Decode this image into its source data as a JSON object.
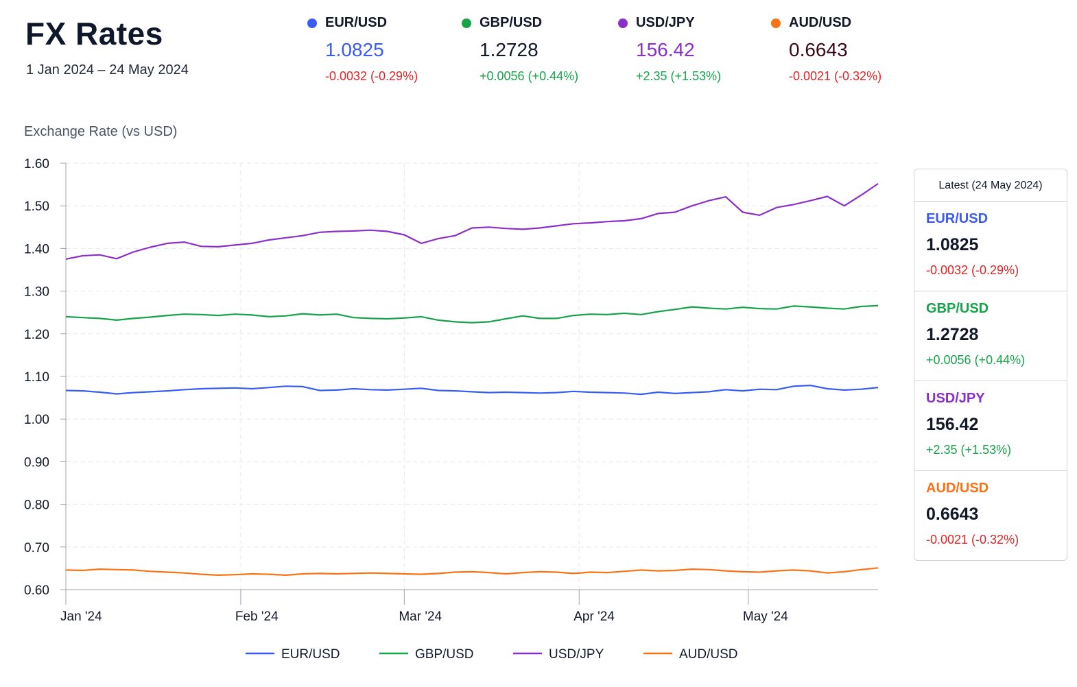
{
  "header": {
    "title": "FX Rates",
    "subtitle": "1 Jan 2024 – 24 May 2024"
  },
  "tiles": [
    {
      "pair": "EUR/USD",
      "rate": "1.0825",
      "change": "-0.0032 (-0.29%)",
      "color": "#3b5bf5",
      "rate_color": "#3b5bf5",
      "direction": "neg"
    },
    {
      "pair": "GBP/USD",
      "rate": "1.2728",
      "change": "+0.0056 (+0.44%)",
      "color": "#16a34a",
      "rate_color": "#111827",
      "direction": "pos"
    },
    {
      "pair": "USD/JPY",
      "rate": "156.42",
      "change": "+2.35 (+1.53%)",
      "color": "#8b2fc9",
      "rate_color": "#8b2fc9",
      "direction": "pos"
    },
    {
      "pair": "AUD/USD",
      "rate": "0.6643",
      "change": "-0.0021 (-0.32%)",
      "color": "#f97316",
      "rate_color": "#3b0a18",
      "direction": "neg"
    }
  ],
  "panel": {
    "heading": "Latest (24 May 2024)",
    "items": [
      {
        "pair": "EUR/USD",
        "rate": "1.0825",
        "change": "-0.0032 (-0.29%)",
        "color": "#3b5bf5",
        "direction": "neg"
      },
      {
        "pair": "GBP/USD",
        "rate": "1.2728",
        "change": "+0.0056 (+0.44%)",
        "color": "#16a34a",
        "direction": "pos"
      },
      {
        "pair": "USD/JPY",
        "rate": "156.42",
        "change": "+2.35 (+1.53%)",
        "color": "#8b2fc9",
        "direction": "pos"
      },
      {
        "pair": "AUD/USD",
        "rate": "0.6643",
        "change": "-0.0021 (-0.32%)",
        "color": "#f97316",
        "direction": "neg"
      }
    ]
  },
  "chart_data": {
    "type": "line",
    "ylabel": "Exchange Rate (vs USD)",
    "ylim": [
      0.6,
      1.6
    ],
    "yticks": [
      "0.60",
      "0.70",
      "0.80",
      "0.90",
      "1.00",
      "1.10",
      "1.20",
      "1.30",
      "1.40",
      "1.50",
      "1.60"
    ],
    "xlim": [
      "2024-01-01",
      "2024-05-24"
    ],
    "xticks": [
      {
        "date": "2024-01-01",
        "label": "Jan '24"
      },
      {
        "date": "2024-02-01",
        "label": "Feb '24"
      },
      {
        "date": "2024-03-01",
        "label": "Mar '24"
      },
      {
        "date": "2024-04-01",
        "label": "Apr '24"
      },
      {
        "date": "2024-05-01",
        "label": "May '24"
      }
    ],
    "grid": true,
    "legend": "bottom",
    "series": [
      {
        "name": "EUR/USD",
        "color": "#3b5bf5",
        "points": [
          [
            "2024-01-01",
            1.067
          ],
          [
            "2024-01-04",
            1.066
          ],
          [
            "2024-01-07",
            1.063
          ],
          [
            "2024-01-10",
            1.059
          ],
          [
            "2024-01-13",
            1.062
          ],
          [
            "2024-01-16",
            1.064
          ],
          [
            "2024-01-19",
            1.066
          ],
          [
            "2024-01-22",
            1.069
          ],
          [
            "2024-01-25",
            1.071
          ],
          [
            "2024-01-28",
            1.072
          ],
          [
            "2024-01-31",
            1.073
          ],
          [
            "2024-02-03",
            1.071
          ],
          [
            "2024-02-06",
            1.074
          ],
          [
            "2024-02-09",
            1.077
          ],
          [
            "2024-02-12",
            1.076
          ],
          [
            "2024-02-15",
            1.067
          ],
          [
            "2024-02-18",
            1.068
          ],
          [
            "2024-02-21",
            1.071
          ],
          [
            "2024-02-24",
            1.069
          ],
          [
            "2024-02-27",
            1.068
          ],
          [
            "2024-03-01",
            1.07
          ],
          [
            "2024-03-04",
            1.072
          ],
          [
            "2024-03-07",
            1.067
          ],
          [
            "2024-03-10",
            1.066
          ],
          [
            "2024-03-13",
            1.064
          ],
          [
            "2024-03-16",
            1.062
          ],
          [
            "2024-03-19",
            1.063
          ],
          [
            "2024-03-22",
            1.062
          ],
          [
            "2024-03-25",
            1.061
          ],
          [
            "2024-03-28",
            1.062
          ],
          [
            "2024-03-31",
            1.065
          ],
          [
            "2024-04-03",
            1.063
          ],
          [
            "2024-04-06",
            1.062
          ],
          [
            "2024-04-09",
            1.061
          ],
          [
            "2024-04-12",
            1.058
          ],
          [
            "2024-04-15",
            1.063
          ],
          [
            "2024-04-18",
            1.06
          ],
          [
            "2024-04-21",
            1.062
          ],
          [
            "2024-04-24",
            1.064
          ],
          [
            "2024-04-27",
            1.069
          ],
          [
            "2024-04-30",
            1.066
          ],
          [
            "2024-05-03",
            1.07
          ],
          [
            "2024-05-06",
            1.069
          ],
          [
            "2024-05-09",
            1.077
          ],
          [
            "2024-05-12",
            1.079
          ],
          [
            "2024-05-15",
            1.071
          ],
          [
            "2024-05-18",
            1.068
          ],
          [
            "2024-05-21",
            1.07
          ],
          [
            "2024-05-24",
            1.074
          ]
        ]
      },
      {
        "name": "GBP/USD",
        "color": "#16a34a",
        "points": [
          [
            "2024-01-01",
            1.24
          ],
          [
            "2024-01-04",
            1.238
          ],
          [
            "2024-01-07",
            1.236
          ],
          [
            "2024-01-10",
            1.232
          ],
          [
            "2024-01-13",
            1.236
          ],
          [
            "2024-01-16",
            1.239
          ],
          [
            "2024-01-19",
            1.243
          ],
          [
            "2024-01-22",
            1.246
          ],
          [
            "2024-01-25",
            1.245
          ],
          [
            "2024-01-28",
            1.243
          ],
          [
            "2024-01-31",
            1.246
          ],
          [
            "2024-02-03",
            1.244
          ],
          [
            "2024-02-06",
            1.24
          ],
          [
            "2024-02-09",
            1.242
          ],
          [
            "2024-02-12",
            1.247
          ],
          [
            "2024-02-15",
            1.244
          ],
          [
            "2024-02-18",
            1.246
          ],
          [
            "2024-02-21",
            1.238
          ],
          [
            "2024-02-24",
            1.236
          ],
          [
            "2024-02-27",
            1.235
          ],
          [
            "2024-03-01",
            1.237
          ],
          [
            "2024-03-04",
            1.24
          ],
          [
            "2024-03-07",
            1.232
          ],
          [
            "2024-03-10",
            1.228
          ],
          [
            "2024-03-13",
            1.226
          ],
          [
            "2024-03-16",
            1.228
          ],
          [
            "2024-03-19",
            1.235
          ],
          [
            "2024-03-22",
            1.242
          ],
          [
            "2024-03-25",
            1.236
          ],
          [
            "2024-03-28",
            1.236
          ],
          [
            "2024-03-31",
            1.243
          ],
          [
            "2024-04-03",
            1.246
          ],
          [
            "2024-04-06",
            1.245
          ],
          [
            "2024-04-09",
            1.248
          ],
          [
            "2024-04-12",
            1.245
          ],
          [
            "2024-04-15",
            1.252
          ],
          [
            "2024-04-18",
            1.257
          ],
          [
            "2024-04-21",
            1.263
          ],
          [
            "2024-04-24",
            1.26
          ],
          [
            "2024-04-27",
            1.258
          ],
          [
            "2024-04-30",
            1.262
          ],
          [
            "2024-05-03",
            1.259
          ],
          [
            "2024-05-06",
            1.258
          ],
          [
            "2024-05-09",
            1.265
          ],
          [
            "2024-05-12",
            1.263
          ],
          [
            "2024-05-15",
            1.26
          ],
          [
            "2024-05-18",
            1.258
          ],
          [
            "2024-05-21",
            1.264
          ],
          [
            "2024-05-24",
            1.266
          ]
        ]
      },
      {
        "name": "USD/JPY",
        "color": "#8b2fc9",
        "points": [
          [
            "2024-01-01",
            1.375
          ],
          [
            "2024-01-04",
            1.383
          ],
          [
            "2024-01-07",
            1.385
          ],
          [
            "2024-01-10",
            1.376
          ],
          [
            "2024-01-13",
            1.392
          ],
          [
            "2024-01-16",
            1.403
          ],
          [
            "2024-01-19",
            1.412
          ],
          [
            "2024-01-22",
            1.415
          ],
          [
            "2024-01-25",
            1.405
          ],
          [
            "2024-01-28",
            1.404
          ],
          [
            "2024-01-31",
            1.408
          ],
          [
            "2024-02-03",
            1.412
          ],
          [
            "2024-02-06",
            1.42
          ],
          [
            "2024-02-09",
            1.425
          ],
          [
            "2024-02-12",
            1.43
          ],
          [
            "2024-02-15",
            1.438
          ],
          [
            "2024-02-18",
            1.44
          ],
          [
            "2024-02-21",
            1.441
          ],
          [
            "2024-02-24",
            1.443
          ],
          [
            "2024-02-27",
            1.44
          ],
          [
            "2024-03-01",
            1.432
          ],
          [
            "2024-03-04",
            1.412
          ],
          [
            "2024-03-07",
            1.423
          ],
          [
            "2024-03-10",
            1.43
          ],
          [
            "2024-03-13",
            1.448
          ],
          [
            "2024-03-16",
            1.45
          ],
          [
            "2024-03-19",
            1.447
          ],
          [
            "2024-03-22",
            1.445
          ],
          [
            "2024-03-25",
            1.448
          ],
          [
            "2024-03-28",
            1.453
          ],
          [
            "2024-03-31",
            1.458
          ],
          [
            "2024-04-03",
            1.46
          ],
          [
            "2024-04-06",
            1.463
          ],
          [
            "2024-04-09",
            1.465
          ],
          [
            "2024-04-12",
            1.47
          ],
          [
            "2024-04-15",
            1.482
          ],
          [
            "2024-04-18",
            1.485
          ],
          [
            "2024-04-21",
            1.5
          ],
          [
            "2024-04-24",
            1.512
          ],
          [
            "2024-04-27",
            1.521
          ],
          [
            "2024-04-30",
            1.485
          ],
          [
            "2024-05-03",
            1.478
          ],
          [
            "2024-05-06",
            1.496
          ],
          [
            "2024-05-09",
            1.503
          ],
          [
            "2024-05-12",
            1.512
          ],
          [
            "2024-05-15",
            1.522
          ],
          [
            "2024-05-18",
            1.5
          ],
          [
            "2024-05-21",
            1.525
          ],
          [
            "2024-05-24",
            1.552
          ]
        ]
      },
      {
        "name": "AUD/USD",
        "color": "#f97316",
        "points": [
          [
            "2024-01-01",
            0.646
          ],
          [
            "2024-01-04",
            0.645
          ],
          [
            "2024-01-07",
            0.648
          ],
          [
            "2024-01-10",
            0.647
          ],
          [
            "2024-01-13",
            0.646
          ],
          [
            "2024-01-16",
            0.643
          ],
          [
            "2024-01-19",
            0.641
          ],
          [
            "2024-01-22",
            0.639
          ],
          [
            "2024-01-25",
            0.636
          ],
          [
            "2024-01-28",
            0.634
          ],
          [
            "2024-01-31",
            0.635
          ],
          [
            "2024-02-03",
            0.637
          ],
          [
            "2024-02-06",
            0.636
          ],
          [
            "2024-02-09",
            0.634
          ],
          [
            "2024-02-12",
            0.637
          ],
          [
            "2024-02-15",
            0.638
          ],
          [
            "2024-02-18",
            0.637
          ],
          [
            "2024-02-21",
            0.638
          ],
          [
            "2024-02-24",
            0.639
          ],
          [
            "2024-02-27",
            0.638
          ],
          [
            "2024-03-01",
            0.637
          ],
          [
            "2024-03-04",
            0.636
          ],
          [
            "2024-03-07",
            0.638
          ],
          [
            "2024-03-10",
            0.641
          ],
          [
            "2024-03-13",
            0.642
          ],
          [
            "2024-03-16",
            0.64
          ],
          [
            "2024-03-19",
            0.637
          ],
          [
            "2024-03-22",
            0.64
          ],
          [
            "2024-03-25",
            0.642
          ],
          [
            "2024-03-28",
            0.641
          ],
          [
            "2024-03-31",
            0.638
          ],
          [
            "2024-04-03",
            0.641
          ],
          [
            "2024-04-06",
            0.64
          ],
          [
            "2024-04-09",
            0.643
          ],
          [
            "2024-04-12",
            0.646
          ],
          [
            "2024-04-15",
            0.644
          ],
          [
            "2024-04-18",
            0.645
          ],
          [
            "2024-04-21",
            0.648
          ],
          [
            "2024-04-24",
            0.647
          ],
          [
            "2024-04-27",
            0.644
          ],
          [
            "2024-04-30",
            0.642
          ],
          [
            "2024-05-03",
            0.641
          ],
          [
            "2024-05-06",
            0.644
          ],
          [
            "2024-05-09",
            0.646
          ],
          [
            "2024-05-12",
            0.644
          ],
          [
            "2024-05-15",
            0.639
          ],
          [
            "2024-05-18",
            0.642
          ],
          [
            "2024-05-21",
            0.647
          ],
          [
            "2024-05-24",
            0.651
          ]
        ]
      }
    ]
  }
}
